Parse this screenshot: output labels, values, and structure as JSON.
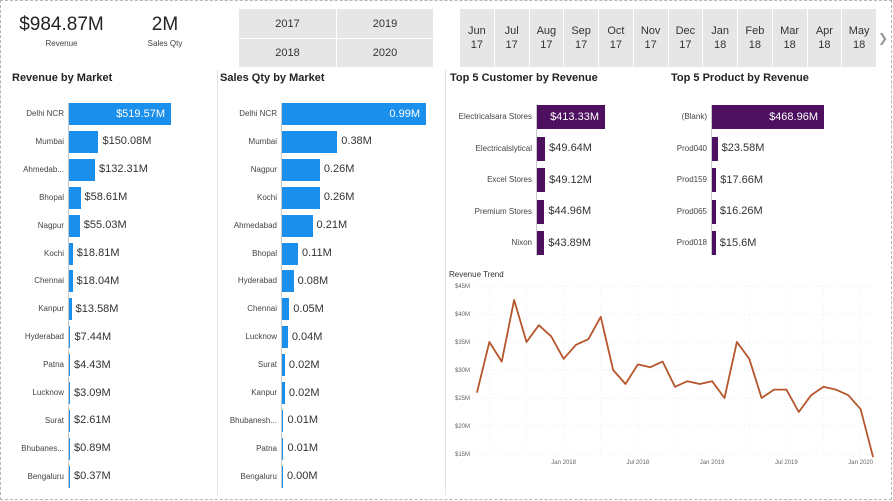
{
  "kpis": {
    "revenue": {
      "value": "$984.87M",
      "label": "Revenue"
    },
    "sales_qty": {
      "value": "2M",
      "label": "Sales Qty"
    }
  },
  "year_slicer": [
    "2017",
    "2019",
    "2018",
    "2020"
  ],
  "month_slicer": [
    {
      "m": "Jun",
      "y": "17"
    },
    {
      "m": "Jul",
      "y": "17"
    },
    {
      "m": "Aug",
      "y": "17"
    },
    {
      "m": "Sep",
      "y": "17"
    },
    {
      "m": "Oct",
      "y": "17"
    },
    {
      "m": "Nov",
      "y": "17"
    },
    {
      "m": "Dec",
      "y": "17"
    },
    {
      "m": "Jan",
      "y": "18"
    },
    {
      "m": "Feb",
      "y": "18"
    },
    {
      "m": "Mar",
      "y": "18"
    },
    {
      "m": "Apr",
      "y": "18"
    },
    {
      "m": "May",
      "y": "18"
    }
  ],
  "chevron_icon": "chevron-right-icon",
  "colors": {
    "blue_bar": "#1b8fec",
    "purple_bar": "#4d0f5f",
    "trend_line": "#b5562b"
  },
  "chart_data": [
    {
      "type": "bar",
      "orientation": "horizontal",
      "title": "Revenue by Market",
      "categories": [
        "Delhi NCR",
        "Mumbai",
        "Ahmedab...",
        "Bhopal",
        "Nagpur",
        "Kochi",
        "Chennai",
        "Kanpur",
        "Hyderabad",
        "Patna",
        "Lucknow",
        "Surat",
        "Bhubanes...",
        "Bengaluru"
      ],
      "values": [
        519.57,
        150.08,
        132.31,
        58.61,
        55.03,
        18.81,
        18.04,
        13.58,
        7.44,
        4.43,
        3.09,
        2.61,
        0.89,
        0.37
      ],
      "labels": [
        "$519.57M",
        "$150.08M",
        "$132.31M",
        "$58.61M",
        "$55.03M",
        "$18.81M",
        "$18.04M",
        "$13.58M",
        "$7.44M",
        "$4.43M",
        "$3.09M",
        "$2.61M",
        "$0.89M",
        "$0.37M"
      ]
    },
    {
      "type": "bar",
      "orientation": "horizontal",
      "title": "Sales Qty by Market",
      "categories": [
        "Delhi NCR",
        "Mumbai",
        "Nagpur",
        "Kochi",
        "Ahmedabad",
        "Bhopal",
        "Hyderabad",
        "Chennai",
        "Lucknow",
        "Surat",
        "Kanpur",
        "Bhubanesh...",
        "Patna",
        "Bengaluru"
      ],
      "values": [
        0.99,
        0.38,
        0.26,
        0.26,
        0.21,
        0.11,
        0.08,
        0.05,
        0.04,
        0.02,
        0.02,
        0.01,
        0.01,
        0.0
      ],
      "labels": [
        "0.99M",
        "0.38M",
        "0.26M",
        "0.26M",
        "0.21M",
        "0.11M",
        "0.08M",
        "0.05M",
        "0.04M",
        "0.02M",
        "0.02M",
        "0.01M",
        "0.01M",
        "0.00M"
      ]
    },
    {
      "type": "bar",
      "orientation": "horizontal",
      "title": "Top 5 Customer by Revenue",
      "categories": [
        "Electricalsara Stores",
        "Electricalslytical",
        "Excel Stores",
        "Premium Stores",
        "Nixon"
      ],
      "values": [
        413.33,
        49.64,
        49.12,
        44.96,
        43.89
      ],
      "labels": [
        "$413.33M",
        "$49.64M",
        "$49.12M",
        "$44.96M",
        "$43.89M"
      ]
    },
    {
      "type": "bar",
      "orientation": "horizontal",
      "title": "Top 5 Product by Revenue",
      "categories": [
        "(Blank)",
        "Prod040",
        "Prod159",
        "Prod065",
        "Prod018"
      ],
      "values": [
        468.96,
        23.58,
        17.66,
        16.26,
        15.6
      ],
      "labels": [
        "$468.96M",
        "$23.58M",
        "$17.66M",
        "$16.26M",
        "$15.6M"
      ]
    },
    {
      "type": "line",
      "title": "Revenue Trend",
      "ylim": [
        15,
        45
      ],
      "y_ticks": [
        15,
        20,
        25,
        30,
        35,
        40,
        45
      ],
      "y_tick_labels": [
        "$15M",
        "$20M",
        "$25M",
        "$30M",
        "$35M",
        "$40M",
        "$45M"
      ],
      "x_tick_labels": [
        "Jan 2018",
        "Jul 2018",
        "Jan 2019",
        "Jul 2019",
        "Jan 2020"
      ],
      "x_tick_positions": [
        7,
        13,
        19,
        25,
        31
      ],
      "x_count": 35,
      "values": [
        26.0,
        35.0,
        31.5,
        42.5,
        35.0,
        38.0,
        36.0,
        32.0,
        34.5,
        35.5,
        39.5,
        30.0,
        27.5,
        31.0,
        30.5,
        31.5,
        27.0,
        28.0,
        27.5,
        28.0,
        25.0,
        35.0,
        32.0,
        25.0,
        26.5,
        26.5,
        22.5,
        25.5,
        27.0,
        26.5,
        25.5,
        23.0,
        14.5
      ]
    }
  ]
}
